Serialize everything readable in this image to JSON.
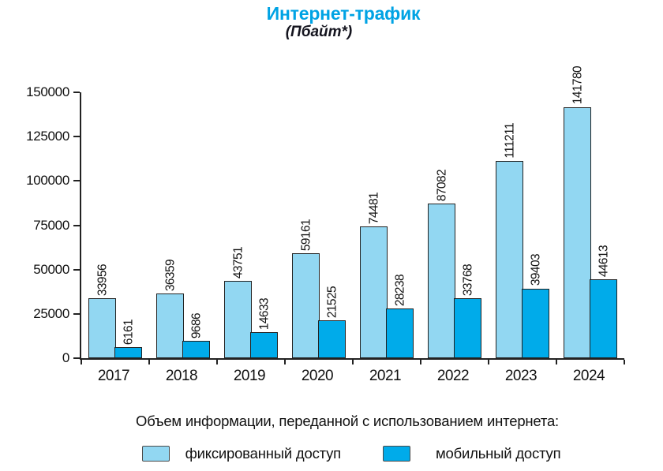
{
  "header": {
    "title": "Интернет-трафик",
    "subtitle": "(Пбайт*)"
  },
  "chart_data": {
    "type": "bar",
    "title": "Интернет-трафик",
    "subtitle": "(Пбайт*)",
    "categories": [
      "2017",
      "2018",
      "2019",
      "2020",
      "2021",
      "2022",
      "2023",
      "2024"
    ],
    "series": [
      {
        "key": "fixed-access",
        "name": "фиксированный доступ",
        "color": "#92d7f2",
        "values": [
          33956,
          36359,
          43751,
          59161,
          74481,
          87082,
          111211,
          141780
        ]
      },
      {
        "key": "mobile-access",
        "name": "мобильный доступ",
        "color": "#00abea",
        "values": [
          6161,
          9686,
          14633,
          21525,
          28238,
          33768,
          39403,
          44613
        ]
      }
    ],
    "ylim": [
      0,
      150000
    ],
    "yticks": [
      0,
      25000,
      50000,
      75000,
      100000,
      125000,
      150000
    ],
    "grid": false,
    "bar_value_labels": true,
    "value_label_rotation": 90,
    "legend_position": "bottom"
  },
  "footer": {
    "caption": "Объем информации, переданной с использованием интернета:"
  },
  "colors": {
    "title": "#00a3e4",
    "fixed_access": "#92d7f2",
    "mobile_access": "#00abea",
    "bar_border": "#222222",
    "axis": "#222222",
    "text": "#111111"
  }
}
